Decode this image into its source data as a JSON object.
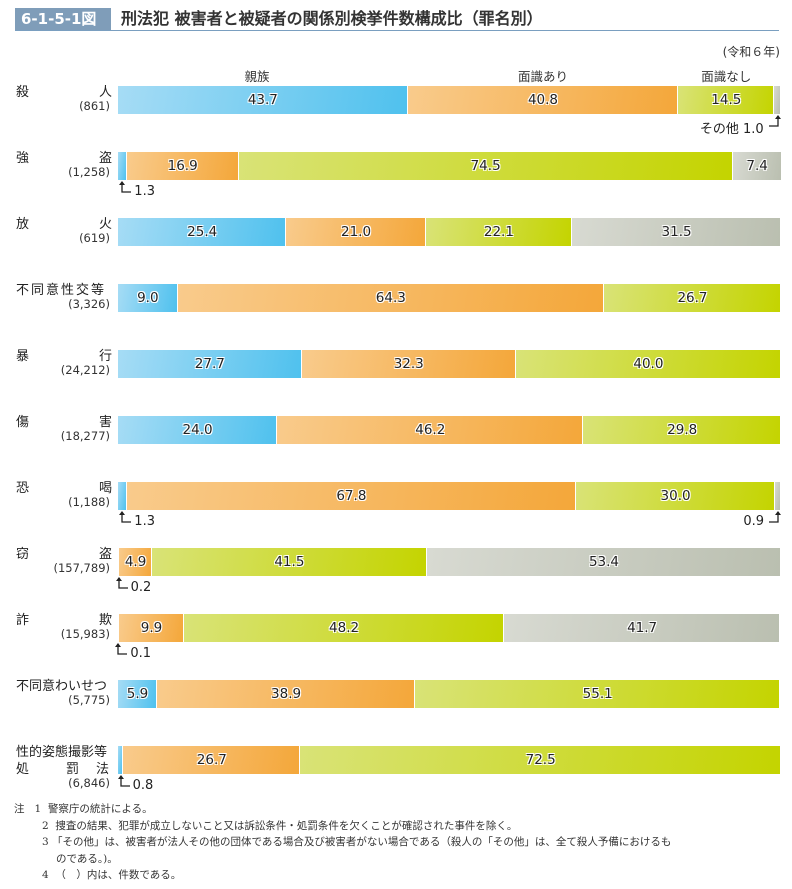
{
  "figure": {
    "number": "6-1-5-1図",
    "title": "刑法犯 被害者と被疑者の関係別検挙件数構成比（罪名別）",
    "era": "(令和６年)"
  },
  "colors": {
    "relatives": "#4fc1ee",
    "acquainted": "#f4a73a",
    "not_acquainted": "#c4d400",
    "other": "#babfb0",
    "title_bg": "#7f9db9"
  },
  "chart_data": {
    "type": "bar",
    "orientation": "horizontal",
    "stacked": true,
    "unit": "%",
    "title": "刑法犯 被害者と被疑者の関係別検挙件数構成比（罪名別）",
    "xlim": [
      0,
      100
    ],
    "legend": [
      "親族",
      "面識あり",
      "面識なし",
      "その他"
    ],
    "legend_placement": "top",
    "categories": [
      {
        "left": "殺",
        "right": "人",
        "count": "(861)"
      },
      {
        "left": "強",
        "right": "盗",
        "count": "(1,258)"
      },
      {
        "left": "放",
        "right": "火",
        "count": "(619)"
      },
      {
        "left": "不同意性交等",
        "right": "",
        "count": "(3,326)"
      },
      {
        "left": "暴",
        "right": "行",
        "count": "(24,212)"
      },
      {
        "left": "傷",
        "right": "害",
        "count": "(18,277)"
      },
      {
        "left": "恐",
        "right": "喝",
        "count": "(1,188)"
      },
      {
        "left": "窃",
        "right": "盗",
        "count": "(157,789)"
      },
      {
        "left": "詐",
        "right": "欺",
        "count": "(15,983)"
      },
      {
        "left": "不同意わいせつ",
        "right": "",
        "count": "(5,775)"
      },
      {
        "left": "性的姿態撮影等",
        "right": "",
        "line2": [
          "処",
          "罰",
          "法"
        ],
        "count": "(6,846)"
      }
    ],
    "series": [
      {
        "name": "親族",
        "values": [
          43.7,
          1.3,
          25.4,
          9.0,
          27.7,
          24.0,
          1.3,
          0.2,
          0.1,
          5.9,
          0.8
        ]
      },
      {
        "name": "面識あり",
        "values": [
          40.8,
          16.9,
          21.0,
          64.3,
          32.3,
          46.2,
          67.8,
          4.9,
          9.9,
          38.9,
          26.7
        ]
      },
      {
        "name": "面識なし",
        "values": [
          14.5,
          74.5,
          22.1,
          26.7,
          40.0,
          29.8,
          30.0,
          41.5,
          48.2,
          55.1,
          72.5
        ]
      },
      {
        "name": "その他",
        "values": [
          1.0,
          7.4,
          31.5,
          0,
          0,
          0,
          0.9,
          53.4,
          41.7,
          0,
          0
        ]
      }
    ],
    "labels": [
      [
        "43.7",
        "40.8",
        "14.5",
        null
      ],
      [
        null,
        "16.9",
        "74.5",
        "7.4"
      ],
      [
        "25.4",
        "21.0",
        "22.1",
        "31.5"
      ],
      [
        "9.0",
        "64.3",
        "26.7",
        null
      ],
      [
        "27.7",
        "32.3",
        "40.0",
        null
      ],
      [
        "24.0",
        "46.2",
        "29.8",
        null
      ],
      [
        null,
        "67.8",
        "30.0",
        null
      ],
      [
        null,
        "4.9",
        "41.5",
        "53.4"
      ],
      [
        null,
        "9.9",
        "48.2",
        "41.7"
      ],
      [
        "5.9",
        "38.9",
        "55.1",
        null
      ],
      [
        null,
        "26.7",
        "72.5",
        null
      ]
    ],
    "callouts": [
      {
        "row": 0,
        "series": 3,
        "text": "その他 1.0",
        "side": "right"
      },
      {
        "row": 1,
        "series": 0,
        "text": "1.3",
        "side": "left"
      },
      {
        "row": 6,
        "series": 0,
        "text": "1.3",
        "side": "left"
      },
      {
        "row": 6,
        "series": 3,
        "text": "0.9",
        "side": "right"
      },
      {
        "row": 7,
        "series": 0,
        "text": "0.2",
        "side": "left"
      },
      {
        "row": 8,
        "series": 0,
        "text": "0.1",
        "side": "left"
      },
      {
        "row": 10,
        "series": 0,
        "text": "0.8",
        "side": "left"
      }
    ]
  },
  "notes": [
    {
      "label": "注",
      "num": "1",
      "text": "警察庁の統計による。"
    },
    {
      "label": "",
      "num": "2",
      "text": "捜査の結果、犯罪が成立しないこと又は訴訟条件・処罰条件を欠くことが確認された事件を除く。"
    },
    {
      "label": "",
      "num": "3",
      "text": "「その他」は、被害者が法人その他の団体である場合及び被害者がない場合である（殺人の「その他」は、全て殺人予備におけるも",
      "cont": "のである。)。"
    },
    {
      "label": "",
      "num": "4",
      "text": "（　）内は、件数である。"
    }
  ]
}
